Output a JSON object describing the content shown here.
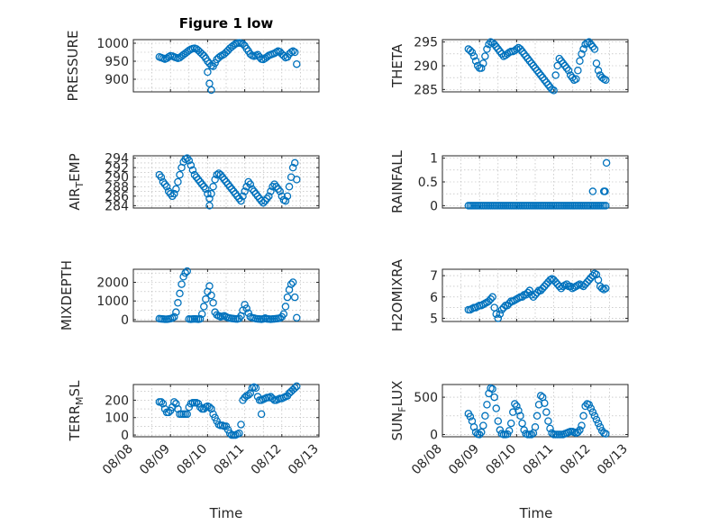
{
  "figure": {
    "title": "Figure 1 low",
    "xlabel": "Time"
  },
  "chart_data": [
    {
      "type": "scatter",
      "name": "PRESSURE",
      "ylabel": "PRESSURE",
      "title": "Figure 1 low",
      "xlim": [
        0,
        5
      ],
      "ylim": [
        865,
        1010
      ],
      "yticks": [
        900,
        950,
        1000
      ],
      "xticks": [],
      "xticklabels": [],
      "x": [
        0.7,
        0.75,
        0.8,
        0.85,
        0.9,
        0.95,
        1.0,
        1.05,
        1.1,
        1.15,
        1.2,
        1.25,
        1.3,
        1.35,
        1.4,
        1.45,
        1.5,
        1.55,
        1.6,
        1.65,
        1.7,
        1.75,
        1.8,
        1.85,
        1.9,
        1.95,
        2.0,
        2.05,
        2.1,
        2.15,
        2.2,
        2.25,
        2.3,
        2.35,
        2.4,
        2.45,
        2.5,
        2.55,
        2.6,
        2.65,
        2.7,
        2.75,
        2.8,
        2.85,
        2.9,
        2.95,
        3.0,
        3.05,
        3.1,
        3.15,
        3.2,
        3.25,
        3.3,
        3.35,
        3.4,
        3.45,
        3.5,
        3.55,
        3.6,
        3.65,
        3.7,
        3.75,
        3.8,
        3.85,
        3.9,
        3.95,
        4.0,
        4.05,
        4.1,
        4.15,
        4.2,
        4.25,
        4.3,
        4.35,
        2.0,
        2.05,
        2.1,
        4.4
      ],
      "y": [
        962,
        960,
        958,
        956,
        958,
        962,
        965,
        964,
        962,
        960,
        958,
        960,
        964,
        968,
        972,
        976,
        980,
        983,
        985,
        986,
        984,
        980,
        975,
        970,
        965,
        958,
        950,
        944,
        938,
        936,
        945,
        955,
        960,
        964,
        967,
        970,
        975,
        980,
        986,
        990,
        994,
        998,
        1000,
        1001,
        1000,
        998,
        993,
        985,
        978,
        970,
        966,
        964,
        966,
        968,
        962,
        956,
        955,
        958,
        962,
        966,
        968,
        970,
        972,
        975,
        978,
        976,
        970,
        965,
        960,
        962,
        970,
        975,
        978,
        975,
        920,
        888,
        870,
        942
      ]
    },
    {
      "type": "scatter",
      "name": "AIR_TEMP",
      "ylabel": "AIR_TEMP",
      "xlim": [
        0,
        5
      ],
      "ylim": [
        283.5,
        294.5
      ],
      "yticks": [
        284,
        286,
        288,
        290,
        292,
        294
      ],
      "xticks": [],
      "xticklabels": [],
      "x": [
        0.7,
        0.75,
        0.8,
        0.85,
        0.9,
        0.95,
        1.0,
        1.05,
        1.1,
        1.15,
        1.2,
        1.25,
        1.3,
        1.35,
        1.4,
        1.45,
        1.5,
        1.55,
        1.6,
        1.65,
        1.7,
        1.75,
        1.8,
        1.85,
        1.9,
        1.95,
        2.0,
        2.05,
        2.1,
        2.15,
        2.2,
        2.25,
        2.3,
        2.35,
        2.4,
        2.45,
        2.5,
        2.55,
        2.6,
        2.65,
        2.7,
        2.75,
        2.8,
        2.85,
        2.9,
        2.95,
        3.0,
        3.05,
        3.1,
        3.15,
        3.2,
        3.25,
        3.3,
        3.35,
        3.4,
        3.45,
        3.5,
        3.55,
        3.6,
        3.65,
        3.7,
        3.75,
        3.8,
        3.85,
        3.9,
        3.95,
        4.0,
        4.05,
        4.1,
        4.15,
        4.2,
        4.25,
        4.3,
        4.35,
        2.05,
        4.4
      ],
      "y": [
        290.5,
        290,
        289,
        288.5,
        288,
        287,
        286.5,
        286,
        286.5,
        287.5,
        289,
        290.5,
        292,
        293.2,
        293.8,
        294,
        293.5,
        292.5,
        291.5,
        290.5,
        290,
        289.5,
        289,
        288.5,
        288,
        287.5,
        286.5,
        285.5,
        286.5,
        288,
        289.5,
        290.5,
        290.8,
        290.5,
        290,
        289.5,
        289,
        288.5,
        288,
        287.5,
        287,
        286.5,
        286,
        285.5,
        285,
        286,
        287,
        288,
        289,
        288.5,
        287.5,
        287,
        286.5,
        286,
        285.5,
        285,
        284.6,
        285,
        285.5,
        286,
        287,
        288,
        288.5,
        288,
        287.5,
        287,
        286,
        285.2,
        285,
        286,
        288,
        290,
        292,
        293,
        284,
        289.5
      ]
    },
    {
      "type": "scatter",
      "name": "MIXDEPTH",
      "ylabel": "MIXDEPTH",
      "xlim": [
        0,
        5
      ],
      "ylim": [
        -100,
        2700
      ],
      "yticks": [
        0,
        1000,
        2000
      ],
      "xticks": [],
      "xticklabels": [],
      "x": [
        0.7,
        0.75,
        0.8,
        0.85,
        0.9,
        0.95,
        1.0,
        1.05,
        1.1,
        1.15,
        1.2,
        1.25,
        1.3,
        1.35,
        1.4,
        1.45,
        1.5,
        1.55,
        1.6,
        1.65,
        1.7,
        1.75,
        1.8,
        1.85,
        1.9,
        1.95,
        2.0,
        2.05,
        2.1,
        2.15,
        2.2,
        2.25,
        2.3,
        2.35,
        2.4,
        2.45,
        2.5,
        2.55,
        2.6,
        2.65,
        2.7,
        2.75,
        2.8,
        2.85,
        2.9,
        2.95,
        3.0,
        3.05,
        3.1,
        3.15,
        3.2,
        3.25,
        3.3,
        3.35,
        3.4,
        3.45,
        3.5,
        3.55,
        3.6,
        3.65,
        3.7,
        3.75,
        3.8,
        3.85,
        3.9,
        3.95,
        4.0,
        4.05,
        4.1,
        4.15,
        4.2,
        4.25,
        4.3,
        4.35,
        4.4
      ],
      "y": [
        50,
        40,
        30,
        20,
        20,
        30,
        50,
        80,
        150,
        400,
        900,
        1400,
        1900,
        2300,
        2500,
        2600,
        30,
        20,
        30,
        40,
        30,
        20,
        40,
        300,
        700,
        1100,
        1500,
        1800,
        1300,
        900,
        400,
        250,
        200,
        150,
        180,
        200,
        150,
        100,
        80,
        60,
        50,
        40,
        30,
        60,
        200,
        500,
        800,
        600,
        350,
        150,
        100,
        80,
        50,
        40,
        30,
        20,
        40,
        80,
        40,
        30,
        20,
        30,
        40,
        50,
        60,
        80,
        150,
        300,
        700,
        1200,
        1600,
        1900,
        2000,
        1200,
        100
      ]
    },
    {
      "type": "scatter",
      "name": "TERR_MSL",
      "ylabel": "TERR_MSL",
      "xlim": [
        0,
        5
      ],
      "ylim": [
        -10,
        290
      ],
      "yticks": [
        0,
        100,
        200
      ],
      "xticks": [
        0,
        1,
        2,
        3,
        4,
        5
      ],
      "xticklabels": [
        "08/08",
        "08/09",
        "08/10",
        "08/11",
        "08/12",
        "08/13"
      ],
      "x": [
        0.7,
        0.75,
        0.8,
        0.85,
        0.9,
        0.95,
        1.0,
        1.05,
        1.1,
        1.15,
        1.2,
        1.25,
        1.3,
        1.35,
        1.4,
        1.45,
        1.5,
        1.55,
        1.6,
        1.65,
        1.7,
        1.75,
        1.8,
        1.85,
        1.9,
        1.95,
        2.0,
        2.05,
        2.1,
        2.15,
        2.2,
        2.25,
        2.3,
        2.35,
        2.4,
        2.45,
        2.5,
        2.55,
        2.6,
        2.65,
        2.7,
        2.75,
        2.8,
        2.85,
        2.9,
        2.95,
        3.0,
        3.05,
        3.1,
        3.15,
        3.2,
        3.25,
        3.3,
        3.35,
        3.4,
        3.45,
        3.5,
        3.55,
        3.6,
        3.65,
        3.7,
        3.75,
        3.8,
        3.85,
        3.9,
        3.95,
        4.0,
        4.05,
        4.1,
        4.15,
        4.2,
        4.25,
        4.3,
        4.35,
        4.4,
        3.45
      ],
      "y": [
        190,
        190,
        180,
        150,
        130,
        130,
        140,
        160,
        190,
        180,
        150,
        120,
        120,
        120,
        120,
        120,
        160,
        180,
        185,
        185,
        185,
        180,
        160,
        150,
        150,
        160,
        165,
        160,
        150,
        120,
        100,
        80,
        60,
        55,
        55,
        50,
        50,
        30,
        10,
        0,
        0,
        0,
        5,
        10,
        60,
        200,
        215,
        225,
        230,
        240,
        270,
        275,
        270,
        220,
        200,
        200,
        205,
        210,
        215,
        215,
        220,
        210,
        200,
        200,
        205,
        210,
        210,
        215,
        220,
        225,
        240,
        250,
        260,
        270,
        280,
        120
      ]
    },
    {
      "type": "scatter",
      "name": "THETA",
      "ylabel": "THETA",
      "xlim": [
        0,
        5
      ],
      "ylim": [
        284.5,
        295.5
      ],
      "yticks": [
        285,
        290,
        295
      ],
      "xticks": [],
      "xticklabels": [],
      "x": [
        0.7,
        0.75,
        0.8,
        0.85,
        0.9,
        0.95,
        1.0,
        1.05,
        1.1,
        1.15,
        1.2,
        1.25,
        1.3,
        1.35,
        1.4,
        1.45,
        1.5,
        1.55,
        1.6,
        1.65,
        1.7,
        1.75,
        1.8,
        1.85,
        1.9,
        1.95,
        2.0,
        2.05,
        2.1,
        2.15,
        2.2,
        2.25,
        2.3,
        2.35,
        2.4,
        2.45,
        2.5,
        2.55,
        2.6,
        2.65,
        2.7,
        2.75,
        2.8,
        2.85,
        2.9,
        2.95,
        3.0,
        3.05,
        3.1,
        3.15,
        3.2,
        3.25,
        3.3,
        3.35,
        3.4,
        3.45,
        3.5,
        3.55,
        3.6,
        3.65,
        3.7,
        3.75,
        3.8,
        3.85,
        3.9,
        3.95,
        4.0,
        4.05,
        4.1,
        4.15,
        4.2,
        4.25,
        4.3,
        4.35,
        4.4
      ],
      "y": [
        293.5,
        293.2,
        292.8,
        292,
        291,
        290,
        289.5,
        289.5,
        290.5,
        292,
        293.5,
        294.5,
        295,
        294.8,
        294.5,
        294,
        293.5,
        293,
        292.5,
        292,
        292.2,
        292.5,
        292.8,
        293,
        293,
        293.2,
        293.5,
        293.8,
        293.5,
        293,
        292.5,
        292,
        291.5,
        291,
        290.5,
        290,
        289.5,
        289,
        288.5,
        288,
        287.5,
        287,
        286.5,
        286,
        285.5,
        285,
        284.8,
        288,
        290,
        291.5,
        291,
        290.5,
        290,
        289.5,
        289,
        288,
        287.5,
        287,
        287.2,
        289,
        291,
        292.5,
        293.5,
        294.5,
        294.8,
        295,
        294.5,
        294,
        293.5,
        290.5,
        289,
        288,
        287.5,
        287.2,
        287
      ]
    },
    {
      "type": "scatter",
      "name": "RAINFALL",
      "ylabel": "RAINFALL",
      "xlim": [
        0,
        5
      ],
      "ylim": [
        -0.05,
        1.05
      ],
      "yticks": [
        0,
        0.5,
        1
      ],
      "xticks": [],
      "xticklabels": [],
      "x": [
        0.7,
        0.75,
        0.8,
        0.85,
        0.9,
        0.95,
        1.0,
        1.05,
        1.1,
        1.15,
        1.2,
        1.25,
        1.3,
        1.35,
        1.4,
        1.45,
        1.5,
        1.55,
        1.6,
        1.65,
        1.7,
        1.75,
        1.8,
        1.85,
        1.9,
        1.95,
        2.0,
        2.05,
        2.1,
        2.15,
        2.2,
        2.25,
        2.3,
        2.35,
        2.4,
        2.45,
        2.5,
        2.55,
        2.6,
        2.65,
        2.7,
        2.75,
        2.8,
        2.85,
        2.9,
        2.95,
        3.0,
        3.05,
        3.1,
        3.15,
        3.2,
        3.25,
        3.3,
        3.35,
        3.4,
        3.45,
        3.5,
        3.55,
        3.6,
        3.65,
        3.7,
        3.75,
        3.8,
        3.85,
        3.9,
        3.95,
        4.0,
        4.05,
        4.1,
        4.15,
        4.2,
        4.25,
        4.3,
        4.35,
        4.4,
        4.05,
        4.35,
        4.38,
        4.42
      ],
      "y": [
        0,
        0,
        0,
        0,
        0,
        0,
        0,
        0,
        0,
        0,
        0,
        0,
        0,
        0,
        0,
        0,
        0,
        0,
        0,
        0,
        0,
        0,
        0,
        0,
        0,
        0,
        0,
        0,
        0,
        0,
        0,
        0,
        0,
        0,
        0,
        0,
        0,
        0,
        0,
        0,
        0,
        0,
        0,
        0,
        0,
        0,
        0,
        0,
        0,
        0,
        0,
        0,
        0,
        0,
        0,
        0,
        0,
        0,
        0,
        0,
        0,
        0,
        0,
        0,
        0,
        0,
        0,
        0,
        0,
        0,
        0,
        0,
        0,
        0,
        0,
        0.3,
        0.3,
        0.3,
        0.9
      ]
    },
    {
      "type": "scatter",
      "name": "H2OMIXRA",
      "ylabel": "H2OMIXRA",
      "xlim": [
        0,
        5
      ],
      "ylim": [
        4.85,
        7.3
      ],
      "yticks": [
        5,
        6,
        7
      ],
      "xticks": [],
      "xticklabels": [],
      "x": [
        0.7,
        0.75,
        0.8,
        0.85,
        0.9,
        0.95,
        1.0,
        1.05,
        1.1,
        1.15,
        1.2,
        1.25,
        1.3,
        1.35,
        1.4,
        1.45,
        1.5,
        1.55,
        1.6,
        1.65,
        1.7,
        1.75,
        1.8,
        1.85,
        1.9,
        1.95,
        2.0,
        2.05,
        2.1,
        2.15,
        2.2,
        2.25,
        2.3,
        2.35,
        2.4,
        2.45,
        2.5,
        2.55,
        2.6,
        2.65,
        2.7,
        2.75,
        2.8,
        2.85,
        2.9,
        2.95,
        3.0,
        3.05,
        3.1,
        3.15,
        3.2,
        3.25,
        3.3,
        3.35,
        3.4,
        3.45,
        3.5,
        3.55,
        3.6,
        3.65,
        3.7,
        3.75,
        3.8,
        3.85,
        3.9,
        3.95,
        4.0,
        4.05,
        4.1,
        4.15,
        4.2,
        4.25,
        4.3,
        4.35,
        4.4
      ],
      "y": [
        5.4,
        5.4,
        5.45,
        5.5,
        5.5,
        5.55,
        5.6,
        5.6,
        5.65,
        5.7,
        5.75,
        5.8,
        5.9,
        6.0,
        5.5,
        5.2,
        5.0,
        5.2,
        5.4,
        5.5,
        5.6,
        5.6,
        5.7,
        5.8,
        5.8,
        5.85,
        5.9,
        5.95,
        6.0,
        6.0,
        6.1,
        6.1,
        6.2,
        6.3,
        6.1,
        6.0,
        6.1,
        6.2,
        6.3,
        6.3,
        6.4,
        6.5,
        6.6,
        6.7,
        6.8,
        6.85,
        6.8,
        6.7,
        6.6,
        6.5,
        6.4,
        6.5,
        6.55,
        6.6,
        6.5,
        6.5,
        6.4,
        6.45,
        6.5,
        6.55,
        6.6,
        6.55,
        6.5,
        6.6,
        6.7,
        6.8,
        6.9,
        7.0,
        7.1,
        7.05,
        6.8,
        6.5,
        6.4,
        6.35,
        6.4
      ]
    },
    {
      "type": "scatter",
      "name": "SUN_FLUX",
      "ylabel": "SUN_FLUX",
      "xlim": [
        0,
        5
      ],
      "ylim": [
        -30,
        670
      ],
      "yticks": [
        0,
        500
      ],
      "xticks": [
        0,
        1,
        2,
        3,
        4,
        5
      ],
      "xticklabels": [
        "08/08",
        "08/09",
        "08/10",
        "08/11",
        "08/12",
        "08/13"
      ],
      "x": [
        0.7,
        0.75,
        0.8,
        0.85,
        0.9,
        0.95,
        1.0,
        1.05,
        1.1,
        1.15,
        1.2,
        1.25,
        1.3,
        1.35,
        1.4,
        1.45,
        1.5,
        1.55,
        1.6,
        1.65,
        1.7,
        1.75,
        1.8,
        1.85,
        1.9,
        1.95,
        2.0,
        2.05,
        2.1,
        2.15,
        2.2,
        2.25,
        2.3,
        2.35,
        2.4,
        2.45,
        2.5,
        2.55,
        2.6,
        2.65,
        2.7,
        2.75,
        2.8,
        2.85,
        2.9,
        2.95,
        3.0,
        3.05,
        3.1,
        3.15,
        3.2,
        3.25,
        3.3,
        3.35,
        3.4,
        3.45,
        3.5,
        3.55,
        3.6,
        3.65,
        3.7,
        3.75,
        3.8,
        3.85,
        3.9,
        3.95,
        4.0,
        4.05,
        4.1,
        4.15,
        4.2,
        4.25,
        4.3,
        4.35,
        4.4
      ],
      "y": [
        280,
        240,
        180,
        100,
        30,
        5,
        0,
        30,
        120,
        250,
        400,
        550,
        620,
        610,
        500,
        350,
        180,
        60,
        10,
        0,
        0,
        5,
        50,
        150,
        300,
        410,
        380,
        320,
        250,
        150,
        60,
        10,
        0,
        0,
        0,
        20,
        100,
        250,
        400,
        520,
        500,
        420,
        300,
        180,
        80,
        20,
        0,
        0,
        0,
        0,
        0,
        0,
        10,
        20,
        30,
        40,
        40,
        30,
        20,
        30,
        60,
        120,
        250,
        380,
        410,
        400,
        350,
        300,
        250,
        200,
        150,
        100,
        50,
        20,
        10
      ]
    }
  ]
}
